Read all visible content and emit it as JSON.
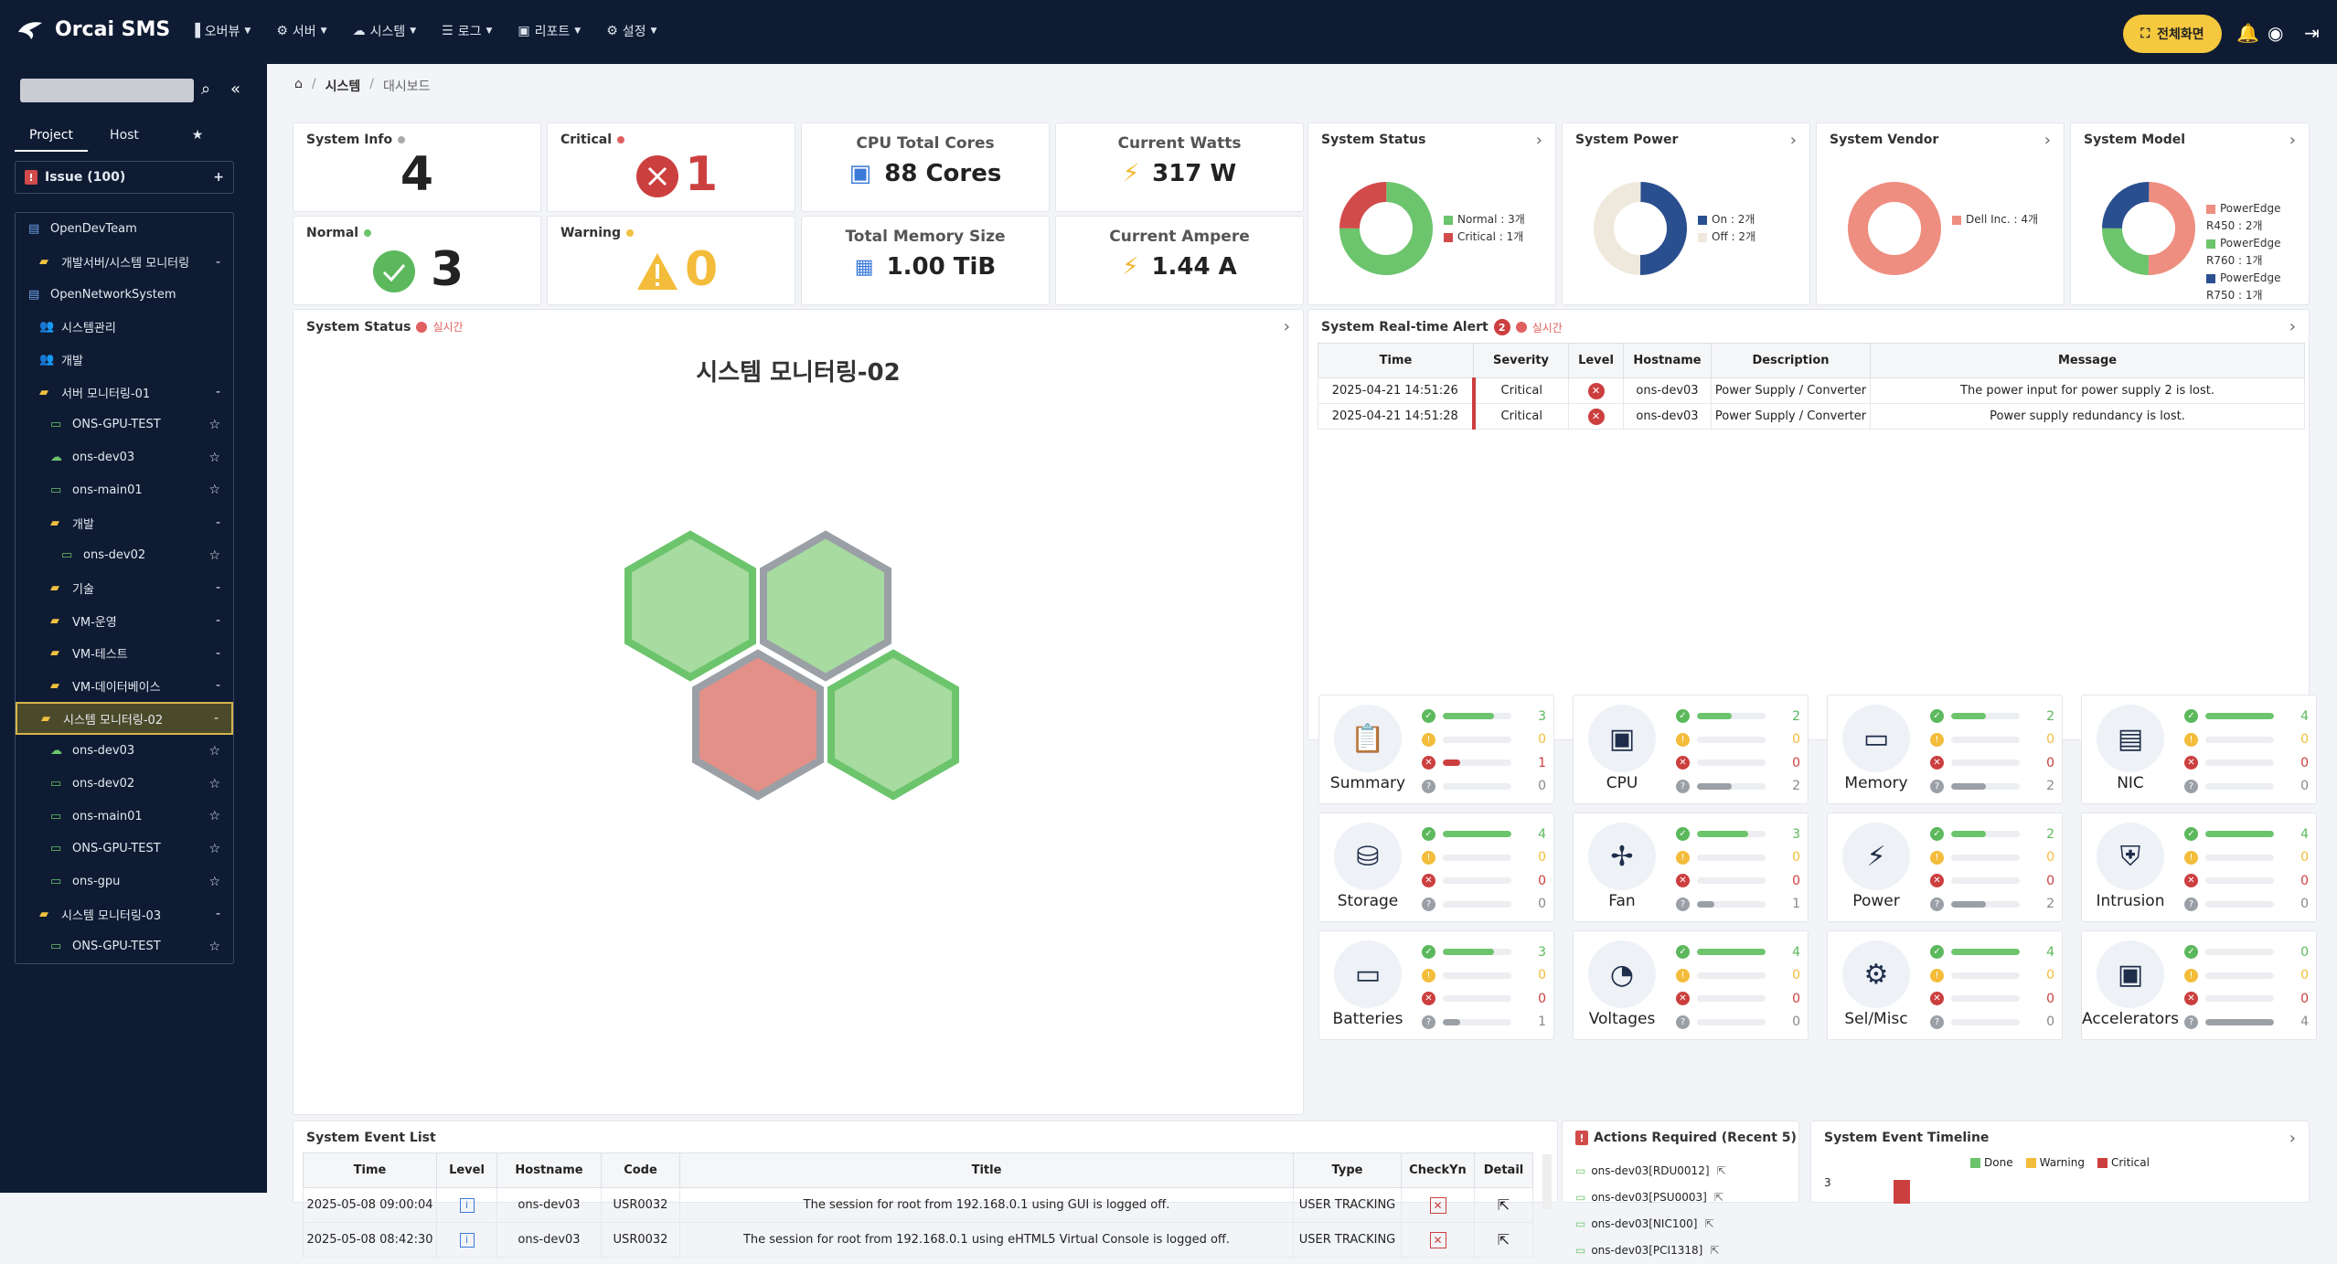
{
  "header": {
    "app_title": "Orcai SMS",
    "menus": [
      "오버뷰",
      "서버",
      "시스템",
      "로그",
      "리포트",
      "설정"
    ],
    "fullscreen_label": "전체화면"
  },
  "sidebar": {
    "tabs": [
      "Project",
      "Host"
    ],
    "issue_label": "Issue (100)",
    "tree": [
      {
        "label": "OpenDevTeam",
        "indent": 0,
        "icon": "building-icon",
        "right": ""
      },
      {
        "label": "개발서버/시스템 모니터링",
        "indent": 1,
        "icon": "folder-icon",
        "right": "-"
      },
      {
        "label": "OpenNetworkSystem",
        "indent": 0,
        "icon": "building-icon",
        "right": ""
      },
      {
        "label": "시스템관리",
        "indent": 1,
        "icon": "users-icon",
        "right": ""
      },
      {
        "label": "개발",
        "indent": 1,
        "icon": "users-icon",
        "right": ""
      },
      {
        "label": "서버 모니터링-01",
        "indent": 1,
        "icon": "folder-icon",
        "right": "-"
      },
      {
        "label": "ONS-GPU-TEST",
        "indent": 2,
        "icon": "server-icon",
        "right": "☆"
      },
      {
        "label": "ons-dev03",
        "indent": 2,
        "icon": "cloud-icon",
        "right": "☆"
      },
      {
        "label": "ons-main01",
        "indent": 2,
        "icon": "server-icon",
        "right": "☆"
      },
      {
        "label": "개발",
        "indent": 2,
        "icon": "folder-icon",
        "right": "-"
      },
      {
        "label": "ons-dev02",
        "indent": 3,
        "icon": "server-icon",
        "right": "☆"
      },
      {
        "label": "기술",
        "indent": 2,
        "icon": "folder-icon",
        "right": "-"
      },
      {
        "label": "VM-운영",
        "indent": 2,
        "icon": "folder-icon",
        "right": "-"
      },
      {
        "label": "VM-테스트",
        "indent": 2,
        "icon": "folder-icon",
        "right": "-"
      },
      {
        "label": "VM-데이터베이스",
        "indent": 2,
        "icon": "folder-icon",
        "right": "-"
      },
      {
        "label": "시스템 모니터링-02",
        "indent": 1,
        "icon": "folder-icon",
        "right": "-",
        "selected": true
      },
      {
        "label": "ons-dev03",
        "indent": 2,
        "icon": "cloud-icon",
        "right": "☆"
      },
      {
        "label": "ons-dev02",
        "indent": 2,
        "icon": "server-icon",
        "right": "☆"
      },
      {
        "label": "ons-main01",
        "indent": 2,
        "icon": "server-icon",
        "right": "☆"
      },
      {
        "label": "ONS-GPU-TEST",
        "indent": 2,
        "icon": "server-icon",
        "right": "☆"
      },
      {
        "label": "ons-gpu",
        "indent": 2,
        "icon": "server-icon",
        "right": "☆"
      },
      {
        "label": "시스템 모니터링-03",
        "indent": 1,
        "icon": "folder-icon",
        "right": "-"
      },
      {
        "label": "ONS-GPU-TEST",
        "indent": 2,
        "icon": "server-icon",
        "right": "☆"
      }
    ]
  },
  "breadcrumb": {
    "level1": "시스템",
    "level2": "대시보드"
  },
  "stats": {
    "system_info": {
      "label": "System Info",
      "value": "4"
    },
    "critical": {
      "label": "Critical",
      "value": "1"
    },
    "normal": {
      "label": "Normal",
      "value": "3"
    },
    "warning": {
      "label": "Warning",
      "value": "0"
    },
    "cpu": {
      "label": "CPU Total Cores",
      "value": "88 Cores"
    },
    "memory": {
      "label": "Total Memory Size",
      "value": "1.00 TiB"
    },
    "watts": {
      "label": "Current Watts",
      "value": "317 W"
    },
    "ampere": {
      "label": "Current Ampere",
      "value": "1.44 A"
    }
  },
  "donuts": [
    {
      "title": "System Status",
      "slices": [
        {
          "label": "Normal : 3개",
          "value": 3,
          "color": "#6cc46c"
        },
        {
          "label": "Critical : 1개",
          "value": 1,
          "color": "#d24b4b"
        }
      ]
    },
    {
      "title": "System Power",
      "slices": [
        {
          "label": "On : 2개",
          "value": 2,
          "color": "#2a4f8f"
        },
        {
          "label": "Off : 2개",
          "value": 2,
          "color": "#efe9dd"
        }
      ]
    },
    {
      "title": "System Vendor",
      "slices": [
        {
          "label": "Dell Inc. : 4개",
          "value": 4,
          "color": "#ee8e80"
        }
      ]
    },
    {
      "title": "System Model",
      "slices": [
        {
          "label": "PowerEdge R450 : 2개",
          "value": 2,
          "color": "#ee8e80"
        },
        {
          "label": "PowerEdge R760 : 1개",
          "value": 1,
          "color": "#6cc46c"
        },
        {
          "label": "PowerEdge R750 : 1개",
          "value": 1,
          "color": "#2a4f8f"
        }
      ]
    }
  ],
  "system_status_panel": {
    "title": "System Status",
    "realtime": "실시간",
    "group_title": "시스템 모니터링-02"
  },
  "alerts": {
    "title": "System Real-time Alert",
    "count": "2",
    "realtime": "실시간",
    "columns": [
      "Time",
      "Severity",
      "Level",
      "Hostname",
      "Description",
      "Message"
    ],
    "rows": [
      {
        "time": "2025-04-21 14:51:26",
        "severity": "Critical",
        "hostname": "ons-dev03",
        "description": "Power Supply / Converter",
        "message": "The power input for power supply 2 is lost."
      },
      {
        "time": "2025-04-21 14:51:28",
        "severity": "Critical",
        "hostname": "ons-dev03",
        "description": "Power Supply / Converter",
        "message": "Power supply redundancy is lost."
      }
    ]
  },
  "components": [
    {
      "name": "Summary",
      "icon": "clipboard-icon",
      "ok": 3,
      "warn": 0,
      "crit": 1,
      "unk": 0
    },
    {
      "name": "CPU",
      "icon": "cpu-icon",
      "ok": 2,
      "warn": 0,
      "crit": 0,
      "unk": 2
    },
    {
      "name": "Memory",
      "icon": "memory-icon",
      "ok": 2,
      "warn": 0,
      "crit": 0,
      "unk": 2
    },
    {
      "name": "NIC",
      "icon": "nic-icon",
      "ok": 4,
      "warn": 0,
      "crit": 0,
      "unk": 0
    },
    {
      "name": "Storage",
      "icon": "storage-icon",
      "ok": 4,
      "warn": 0,
      "crit": 0,
      "unk": 0
    },
    {
      "name": "Fan",
      "icon": "fan-icon",
      "ok": 3,
      "warn": 0,
      "crit": 0,
      "unk": 1
    },
    {
      "name": "Power",
      "icon": "power-icon",
      "ok": 2,
      "warn": 0,
      "crit": 0,
      "unk": 2
    },
    {
      "name": "Intrusion",
      "icon": "shield-icon",
      "ok": 4,
      "warn": 0,
      "crit": 0,
      "unk": 0
    },
    {
      "name": "Batteries",
      "icon": "battery-icon",
      "ok": 3,
      "warn": 0,
      "crit": 0,
      "unk": 1
    },
    {
      "name": "Voltages",
      "icon": "gauge-icon",
      "ok": 4,
      "warn": 0,
      "crit": 0,
      "unk": 0
    },
    {
      "name": "Sel/Misc",
      "icon": "gear-icon",
      "ok": 4,
      "warn": 0,
      "crit": 0,
      "unk": 0
    },
    {
      "name": "Accelerators",
      "icon": "chip-icon",
      "ok": 0,
      "warn": 0,
      "crit": 0,
      "unk": 4
    }
  ],
  "events": {
    "title": "System Event List",
    "columns": [
      "Time",
      "Level",
      "Hostname",
      "Code",
      "Title",
      "Type",
      "CheckYn",
      "Detail"
    ],
    "rows": [
      {
        "time": "2025-05-08 09:00:04",
        "hostname": "ons-dev03",
        "code": "USR0032",
        "title": "The session for root from 192.168.0.1 using GUI is logged off.",
        "type": "USER TRACKING"
      },
      {
        "time": "2025-05-08 08:42:30",
        "hostname": "ons-dev03",
        "code": "USR0032",
        "title": "The session for root from 192.168.0.1 using eHTML5 Virtual Console is logged off.",
        "type": "USER TRACKING"
      }
    ]
  },
  "actions": {
    "title": "Actions Required (Recent 5)",
    "items": [
      "ons-dev03[RDU0012]",
      "ons-dev03[PSU0003]",
      "ons-dev03[NIC100]",
      "ons-dev03[PCI1318]"
    ]
  },
  "timeline": {
    "title": "System Event Timeline",
    "legend": [
      "Done",
      "Warning",
      "Critical"
    ],
    "ytick": "3"
  }
}
